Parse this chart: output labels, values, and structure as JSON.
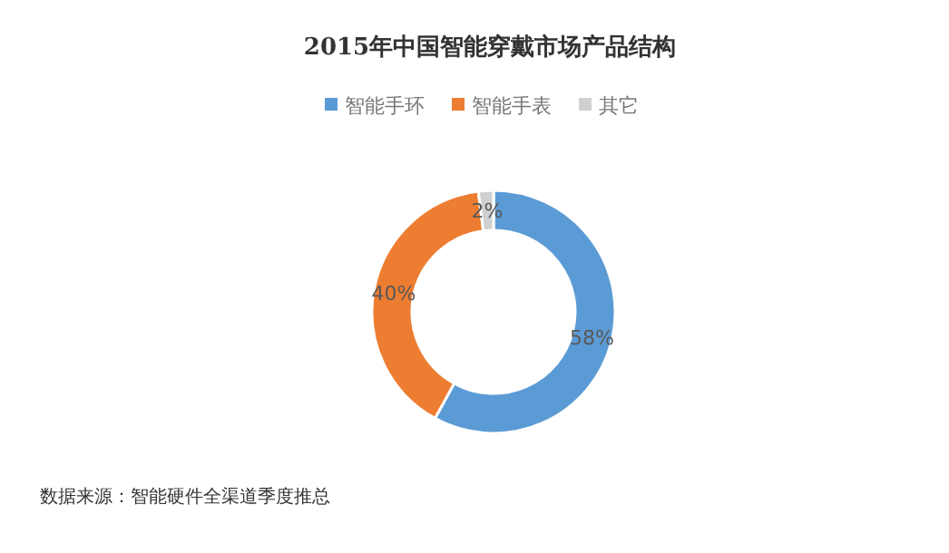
{
  "chart_data": {
    "type": "donut",
    "title": "2015年中国智能穿戴市场产品结构",
    "categories": [
      "智能手环",
      "智能手表",
      "其它"
    ],
    "values": [
      58,
      40,
      2
    ],
    "colors": [
      "#5b9bd5",
      "#ed7d31",
      "#d0d0d0"
    ],
    "value_labels": [
      "58%",
      "40%",
      "2%"
    ],
    "legend": "top",
    "annotations": [
      "数据来源：智能硬件全渠道季度推总"
    ]
  }
}
